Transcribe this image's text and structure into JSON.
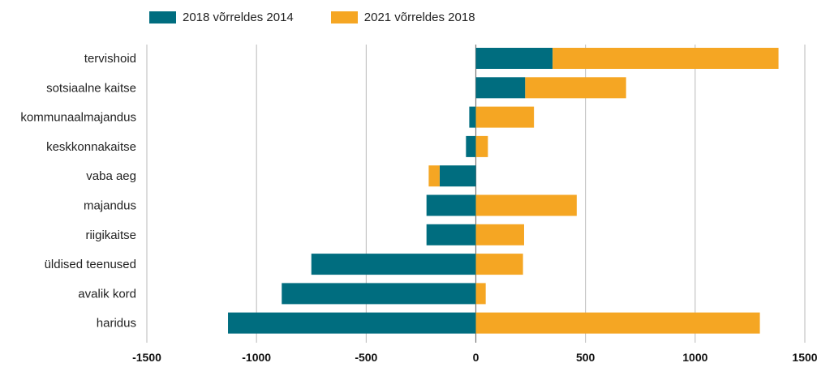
{
  "chart_data": {
    "type": "bar",
    "orientation": "horizontal",
    "stacked": true,
    "categories": [
      "tervishoid",
      "sotsiaalne kaitse",
      "kommunaalmajandus",
      "keskkonnakaitse",
      "vaba aeg",
      "majandus",
      "riigikaitse",
      "üldised teenused",
      "avalik kord",
      "haridus"
    ],
    "series": [
      {
        "name": "2018 võrreldes 2014",
        "color": "#006d7f",
        "values": [
          350,
          225,
          -30,
          -45,
          -165,
          -225,
          -225,
          -750,
          -885,
          -1130
        ]
      },
      {
        "name": "2021 võrreldes 2018",
        "color": "#f5a623",
        "values": [
          1030,
          460,
          265,
          55,
          -50,
          460,
          220,
          215,
          45,
          1295
        ]
      }
    ],
    "xlim": [
      -1500,
      1500
    ],
    "xticks": [
      "-1500",
      "-1000",
      "-500",
      "0",
      "500",
      "1000",
      "1500"
    ],
    "grid": true,
    "legend_position": "top-left"
  }
}
